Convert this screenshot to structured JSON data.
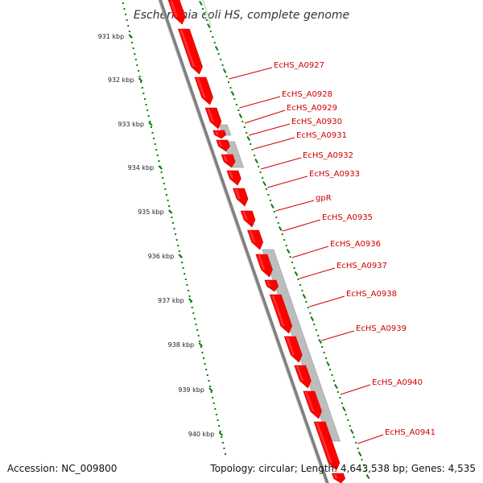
{
  "title": "Escherichia coli HS, complete genome",
  "footer": {
    "accession": "Accession: NC_009800",
    "topology": "Topology: circular; Length: 4,643,538 bp; Genes: 4,535"
  },
  "colors": {
    "gene_fill": "#ff0000",
    "gene_edge": "#c80000",
    "feature_fill": "#bdbdbd",
    "backbone": "#808080",
    "scale_dots": "#008000",
    "label": "#cc0000"
  },
  "scale_ticks": [
    {
      "label": "931 kbp"
    },
    {
      "label": "932 kbp"
    },
    {
      "label": "933 kbp"
    },
    {
      "label": "934 kbp"
    },
    {
      "label": "935 kbp"
    },
    {
      "label": "936 kbp"
    },
    {
      "label": "937 kbp"
    },
    {
      "label": "938 kbp"
    },
    {
      "label": "939 kbp"
    },
    {
      "label": "940 kbp"
    }
  ],
  "genes": [
    {
      "label": "EcHS_A0927"
    },
    {
      "label": "EcHS_A0928"
    },
    {
      "label": "EcHS_A0929"
    },
    {
      "label": "EcHS_A0930"
    },
    {
      "label": "EcHS_A0931"
    },
    {
      "label": "EcHS_A0932"
    },
    {
      "label": "EcHS_A0933"
    },
    {
      "label": "gpR"
    },
    {
      "label": "EcHS_A0935"
    },
    {
      "label": "EcHS_A0936"
    },
    {
      "label": "EcHS_A0937"
    },
    {
      "label": "EcHS_A0938"
    },
    {
      "label": "EcHS_A0939"
    },
    {
      "label": "EcHS_A0940"
    },
    {
      "label": "EcHS_A0941"
    }
  ]
}
